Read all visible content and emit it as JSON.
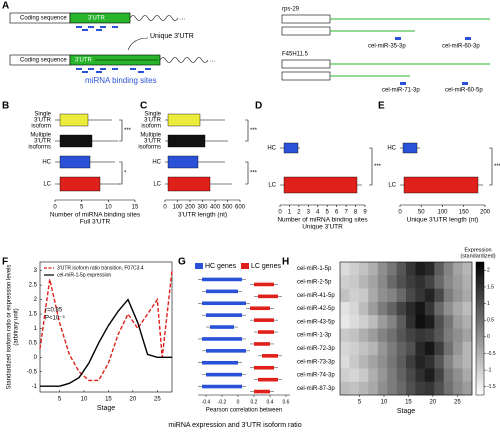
{
  "panel_labels": [
    "A",
    "B",
    "C",
    "D",
    "E",
    "F",
    "G",
    "H"
  ],
  "a": {
    "coding": "Coding sequence",
    "utr": "3'UTR",
    "unique": "Unique 3'UTR",
    "sites": "miRNA binding sites",
    "genes": [
      {
        "name": "rps-29",
        "mirnas": [
          "cel-miR-35-3p",
          "cel-miR-60-3p"
        ]
      },
      {
        "name": "F45H11.5",
        "mirnas": [
          "cel-miR-71-3p",
          "cel-miR-60-5p"
        ]
      }
    ]
  },
  "b": {
    "rows": [
      [
        "Single",
        "3'UTR",
        "isoform"
      ],
      [
        "Multiple",
        "3'UTR",
        "isoforms"
      ],
      [
        "HC"
      ],
      [
        "LC"
      ]
    ],
    "xticks": [
      "0",
      "5",
      "10",
      "15"
    ],
    "xlabel": [
      "Number of miRNA binding sites",
      "Full 3'UTR"
    ],
    "sig": [
      "***",
      "*"
    ]
  },
  "c": {
    "rows": [
      [
        "Single",
        "3'UTR",
        "isoform"
      ],
      [
        "Multiple",
        "3'UTR",
        "isoforms"
      ],
      [
        "HC"
      ],
      [
        "LC"
      ]
    ],
    "xticks": [
      "0",
      "100",
      "200",
      "300",
      "400",
      "500",
      "600"
    ],
    "xlabel": [
      "3'UTR length (nt)"
    ],
    "sig": [
      "***",
      "***"
    ]
  },
  "d": {
    "rows": [
      [
        "HC"
      ],
      [
        "LC"
      ]
    ],
    "xticks": [
      "0",
      "1",
      "2",
      "3",
      "4",
      "5",
      "6",
      "7",
      "8",
      "9"
    ],
    "xlabel": [
      "Number of miRNA binding sites",
      "Unique 3'UTR"
    ],
    "sig": [
      "***"
    ]
  },
  "e": {
    "rows": [
      [
        "HC"
      ],
      [
        "LC"
      ]
    ],
    "xticks": [
      "0",
      "50",
      "100",
      "150",
      "200"
    ],
    "xlabel": [
      "Unique 3'UTR length (nt)"
    ],
    "sig": [
      "***"
    ]
  },
  "f": {
    "type": "line",
    "ylabel": [
      "Standardized isoform ratio or expression levels",
      "(arbitrary unit)"
    ],
    "xlabel": "Stage",
    "stats": [
      "r=0.85",
      "P<10⁻⁵"
    ],
    "x": [
      1,
      3,
      5,
      7,
      9,
      11,
      13,
      15,
      17,
      19,
      21,
      23,
      25,
      26,
      28
    ],
    "series": [
      {
        "name": "3'UTR isoform ratio transition, F07C3.4",
        "color": "#e0201b",
        "dash": true,
        "values": [
          0.3,
          2.7,
          1.2,
          0.1,
          -0.5,
          -0.8,
          -0.8,
          -0.2,
          0.8,
          1.5,
          1.0,
          1.5,
          2.0,
          0.0,
          3.0
        ]
      },
      {
        "name": "cel-miR-1-5p expression",
        "color": "#000000",
        "dash": false,
        "values": [
          -1.0,
          -1.0,
          -1.0,
          -0.9,
          -0.7,
          -0.2,
          0.5,
          1.1,
          1.6,
          2.0,
          1.2,
          0.1,
          0.0,
          0.0,
          0.0
        ]
      }
    ],
    "xlim": [
      1,
      28
    ],
    "xticks": [
      5,
      10,
      15,
      20,
      25
    ],
    "ylim": [
      -1.2,
      3.3
    ],
    "yticks": [
      -1,
      -0.5,
      0,
      0.5,
      1,
      1.5,
      2,
      2.5,
      3
    ]
  },
  "g": {
    "legend": [
      {
        "name": "HC genes",
        "color": "#2a52d8"
      },
      {
        "name": "LC genes",
        "color": "#e0201b"
      }
    ],
    "xlabel": "Pearson correlation between",
    "caption": "miRNA expression and 3'UTR isoform ratio",
    "xlim": [
      -0.5,
      0.65
    ],
    "xticks": [
      -0.4,
      -0.2,
      0,
      0.2,
      0.4,
      0.6
    ],
    "hc": [
      [
        -0.45,
        0.05
      ],
      [
        -0.4,
        0.0
      ],
      [
        -0.45,
        0.1
      ],
      [
        -0.4,
        0.05
      ],
      [
        -0.35,
        -0.05
      ],
      [
        -0.45,
        0.05
      ],
      [
        -0.4,
        0.1
      ],
      [
        -0.45,
        0.0
      ],
      [
        -0.4,
        0.05
      ],
      [
        -0.45,
        0.05
      ]
    ],
    "lc": [
      [
        0.2,
        0.45
      ],
      [
        0.25,
        0.5
      ],
      [
        0.15,
        0.4
      ],
      [
        0.2,
        0.45
      ],
      [
        0.25,
        0.45
      ],
      [
        0.2,
        0.4
      ],
      [
        0.3,
        0.5
      ],
      [
        0.2,
        0.45
      ],
      [
        0.25,
        0.5
      ],
      [
        0.2,
        0.4
      ]
    ]
  },
  "h": {
    "rows": [
      "cel-miR-1-5p",
      "cel-miR-2-5p",
      "cel-miR-41-5p",
      "cel-miR-42-5p",
      "cel-miR-43-5p",
      "cel-miR-1-3p",
      "cel-miR-72-3p",
      "cel-miR-73-3p",
      "cel-miR-74-3p",
      "cel-miR-87-3p"
    ],
    "colorbar_title": [
      "Expression",
      "(standardized)"
    ],
    "xlabel": "Stage",
    "xlim": [
      1,
      28
    ],
    "xticks": [
      5,
      10,
      15,
      20,
      25
    ],
    "clim": [
      -1.75,
      2.25
    ],
    "cticks": [
      2,
      1.5,
      1,
      0.5,
      0,
      -0.5,
      -1,
      -1.5
    ],
    "values": [
      [
        -1.2,
        -1.0,
        -0.8,
        -0.5,
        0.0,
        0.4,
        0.9,
        1.4,
        1.8,
        1.6,
        0.8,
        0.2,
        -0.3,
        -0.6
      ],
      [
        -1.0,
        -0.9,
        -0.6,
        -0.3,
        0.1,
        0.6,
        1.0,
        1.3,
        1.5,
        1.2,
        0.6,
        0.1,
        -0.2,
        -0.5
      ],
      [
        -0.8,
        -1.0,
        -0.9,
        -0.4,
        0.0,
        0.2,
        0.6,
        1.1,
        1.4,
        1.7,
        1.1,
        0.3,
        -0.1,
        -0.4
      ],
      [
        -1.3,
        -1.1,
        -0.7,
        -0.2,
        0.3,
        0.7,
        1.2,
        1.6,
        1.9,
        1.4,
        0.6,
        0.0,
        -0.4,
        -0.7
      ],
      [
        -1.4,
        -1.2,
        -1.0,
        -0.7,
        -0.2,
        0.2,
        0.8,
        1.5,
        2.0,
        1.8,
        1.0,
        0.4,
        -0.2,
        -0.5
      ],
      [
        -0.9,
        -0.8,
        -0.5,
        -0.2,
        0.2,
        0.5,
        0.9,
        1.2,
        1.4,
        1.3,
        0.9,
        0.3,
        0.0,
        -0.3
      ],
      [
        -1.1,
        -1.0,
        -0.8,
        -0.6,
        -0.1,
        0.3,
        0.7,
        1.0,
        1.6,
        1.9,
        1.3,
        0.5,
        -0.1,
        -0.6
      ],
      [
        -1.2,
        -0.9,
        -0.6,
        -0.3,
        0.0,
        0.4,
        0.8,
        1.3,
        1.7,
        1.5,
        0.9,
        0.2,
        -0.3,
        -0.6
      ],
      [
        -1.0,
        -1.1,
        -0.9,
        -0.5,
        -0.1,
        0.3,
        0.7,
        1.1,
        1.5,
        1.8,
        1.2,
        0.4,
        0.0,
        -0.4
      ],
      [
        -0.7,
        -0.8,
        -0.6,
        -0.4,
        0.0,
        0.3,
        0.6,
        1.0,
        1.3,
        1.4,
        1.0,
        0.5,
        0.1,
        -0.2
      ]
    ]
  }
}
